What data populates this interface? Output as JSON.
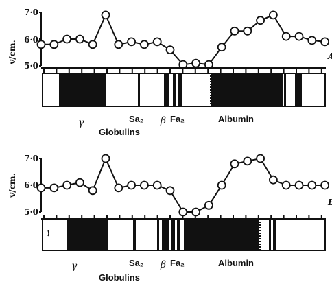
{
  "chart_data": [
    {
      "type": "line",
      "panel_label": "A",
      "ylabel": "v/cm.",
      "yticks": [
        "7·0",
        "6·0",
        "5·0"
      ],
      "ylim": [
        5.0,
        7.0
      ],
      "x": [
        1,
        2,
        3,
        4,
        5,
        6,
        7,
        8,
        9,
        10,
        11,
        12,
        13,
        14,
        15,
        16,
        17,
        18,
        19,
        20,
        21,
        22,
        23
      ],
      "values": [
        5.8,
        5.8,
        6.0,
        6.0,
        5.8,
        6.9,
        5.8,
        5.9,
        5.8,
        5.9,
        5.6,
        5.05,
        5.1,
        5.05,
        5.7,
        6.3,
        6.3,
        6.7,
        6.9,
        6.1,
        6.1,
        5.95,
        5.9
      ],
      "band_labels": {
        "gamma": "γ",
        "sa2": "Sa₂",
        "beta": "β",
        "fa2": "Fa₂",
        "albumin": "Albumin",
        "globulins": "Globulins"
      }
    },
    {
      "type": "line",
      "panel_label": "B",
      "ylabel": "v/cm.",
      "yticks": [
        "7·0",
        "6·0",
        "5·0"
      ],
      "ylim": [
        5.0,
        7.0
      ],
      "x": [
        1,
        2,
        3,
        4,
        5,
        6,
        7,
        8,
        9,
        10,
        11,
        12,
        13,
        14,
        15,
        16,
        17,
        18,
        19,
        20,
        21,
        22,
        23
      ],
      "values": [
        5.9,
        5.9,
        6.0,
        6.1,
        5.8,
        7.0,
        5.9,
        6.0,
        6.0,
        6.0,
        5.8,
        5.0,
        5.0,
        5.25,
        6.0,
        6.8,
        6.9,
        7.0,
        6.2,
        6.0,
        6.0,
        6.0,
        6.0
      ],
      "band_labels": {
        "gamma": "γ",
        "sa2": "Sa₂",
        "beta": "β",
        "fa2": "Fa₂",
        "albumin": "Albumin",
        "globulins": "Globulins"
      }
    }
  ],
  "colors": {
    "ink": "#111111",
    "paper": "#ffffff"
  }
}
